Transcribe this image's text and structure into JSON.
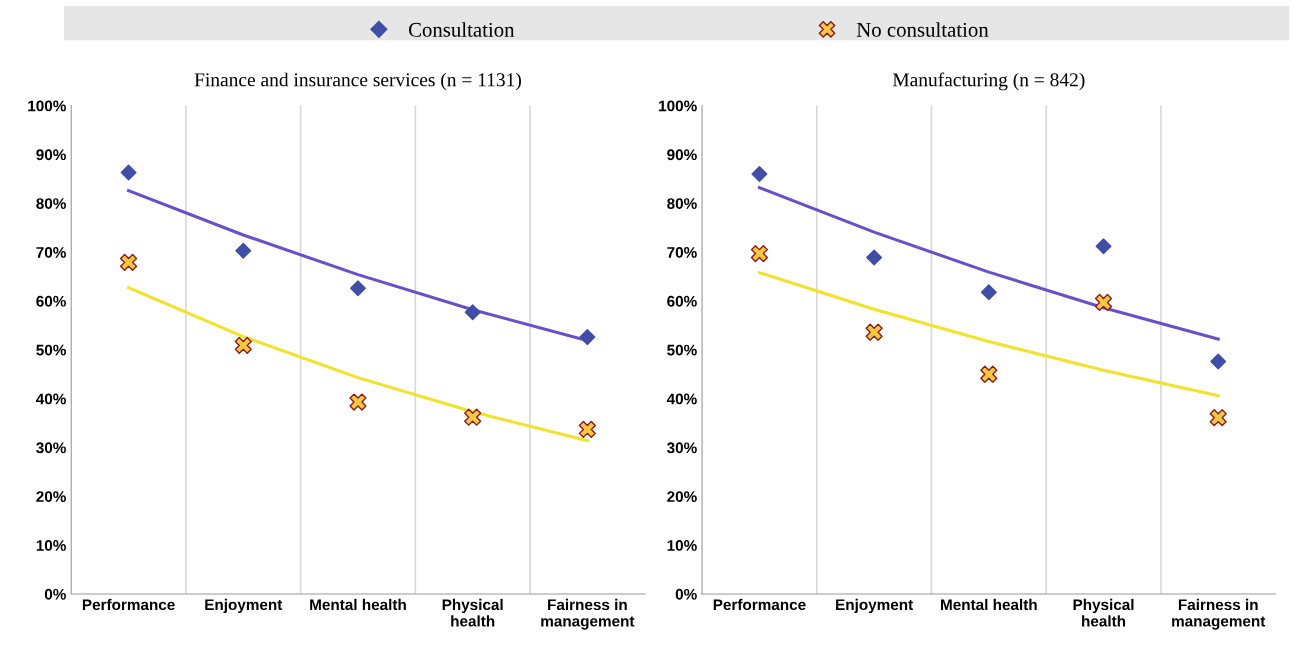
{
  "chart_data": [
    {
      "type": "scatter",
      "title": "Finance and insurance services (n = 1131)",
      "categories": [
        "Performance",
        "Enjoyment",
        "Mental health",
        "Physical\nhealth",
        "Fairness in\nmanagement"
      ],
      "ylim": [
        0,
        100
      ],
      "yticks": [
        {
          "value": 0,
          "label": "0%"
        },
        {
          "value": 10,
          "label": "10%"
        },
        {
          "value": 20,
          "label": "20%"
        },
        {
          "value": 30,
          "label": "30%"
        },
        {
          "value": 40,
          "label": "40%"
        },
        {
          "value": 50,
          "label": "50%"
        },
        {
          "value": 60,
          "label": "60%"
        },
        {
          "value": 70,
          "label": "70%"
        },
        {
          "value": 80,
          "label": "80%"
        },
        {
          "value": 90,
          "label": "90%"
        },
        {
          "value": 100,
          "label": "100%"
        }
      ],
      "grid": "x",
      "legend": "top",
      "series": [
        {
          "type": "line",
          "color": "#6a4fc8",
          "values": [
            82.6,
            73.5,
            65.4,
            58.2,
            51.9
          ]
        },
        {
          "type": "line",
          "color": "#f2e22c",
          "values": [
            62.7,
            52.7,
            44.3,
            37.3,
            31.4
          ]
        },
        {
          "name": "Consultation",
          "color": "#3f4fa8",
          "marker": "diamond",
          "values": [
            86.3,
            70.3,
            62.6,
            57.7,
            52.6
          ]
        },
        {
          "name": "No consultation",
          "color": "#f5c842",
          "marker": "cross",
          "values": [
            67.9,
            50.9,
            39.3,
            36.2,
            33.7
          ]
        }
      ]
    },
    {
      "type": "scatter",
      "title": "Manufacturing (n = 842)",
      "categories": [
        "Performance",
        "Enjoyment",
        "Mental health",
        "Physical\nhealth",
        "Fairness in\nmanagement"
      ],
      "ylim": [
        0,
        100
      ],
      "yticks": [
        {
          "value": 0,
          "label": "0%"
        },
        {
          "value": 10,
          "label": "10%"
        },
        {
          "value": 20,
          "label": "20%"
        },
        {
          "value": 30,
          "label": "30%"
        },
        {
          "value": 40,
          "label": "40%"
        },
        {
          "value": 50,
          "label": "50%"
        },
        {
          "value": 60,
          "label": "60%"
        },
        {
          "value": 70,
          "label": "70%"
        },
        {
          "value": 80,
          "label": "80%"
        },
        {
          "value": 90,
          "label": "90%"
        },
        {
          "value": 100,
          "label": "100%"
        }
      ],
      "grid": "x",
      "legend": "top",
      "series": [
        {
          "type": "line",
          "color": "#6a4fc8",
          "values": [
            83.2,
            74.1,
            65.9,
            58.6,
            52.2
          ]
        },
        {
          "type": "line",
          "color": "#f2e22c",
          "values": [
            65.8,
            58.3,
            51.7,
            45.8,
            40.6
          ]
        },
        {
          "name": "Consultation",
          "color": "#3f4fa8",
          "marker": "diamond",
          "values": [
            86.0,
            68.9,
            61.8,
            71.2,
            47.6
          ]
        },
        {
          "name": "No consultation",
          "color": "#f5c842",
          "marker": "cross",
          "values": [
            69.7,
            53.6,
            45.0,
            59.7,
            36.1
          ]
        }
      ]
    }
  ]
}
